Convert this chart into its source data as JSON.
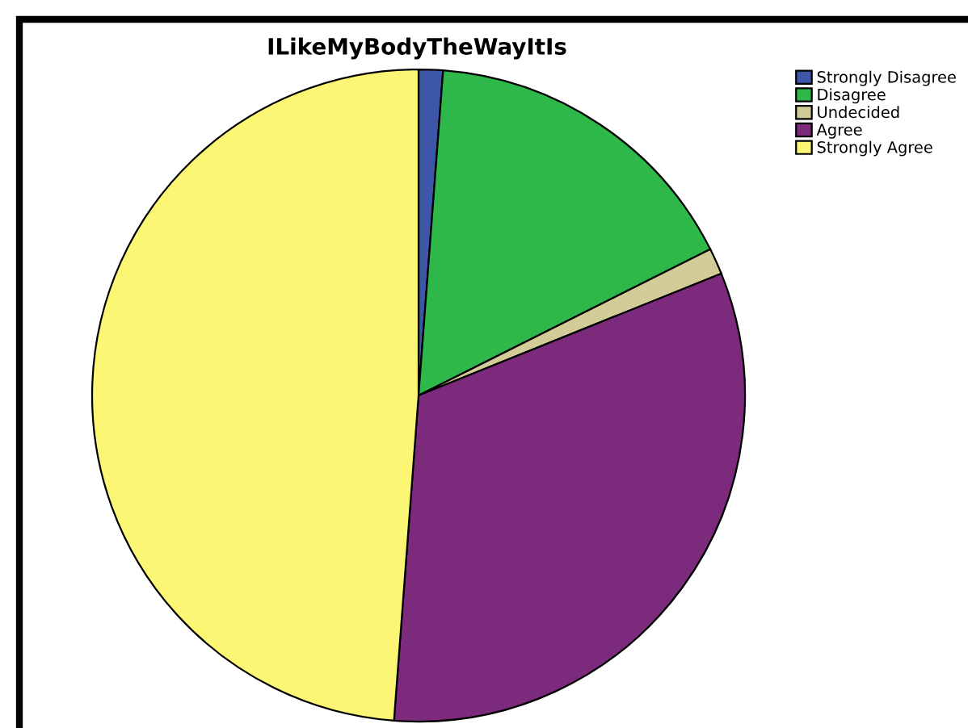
{
  "chart_data": {
    "type": "pie",
    "title": "ILikeMyBodyTheWayItIs",
    "categories": [
      "Strongly Disagree",
      "Disagree",
      "Undecided",
      "Agree",
      "Strongly Agree"
    ],
    "values": [
      1.2,
      16.4,
      1.3,
      32.3,
      48.8
    ],
    "colors": [
      "#3d56a8",
      "#2fb84a",
      "#d3cc98",
      "#7b2a7c",
      "#fbf774"
    ],
    "legend": "top right"
  }
}
